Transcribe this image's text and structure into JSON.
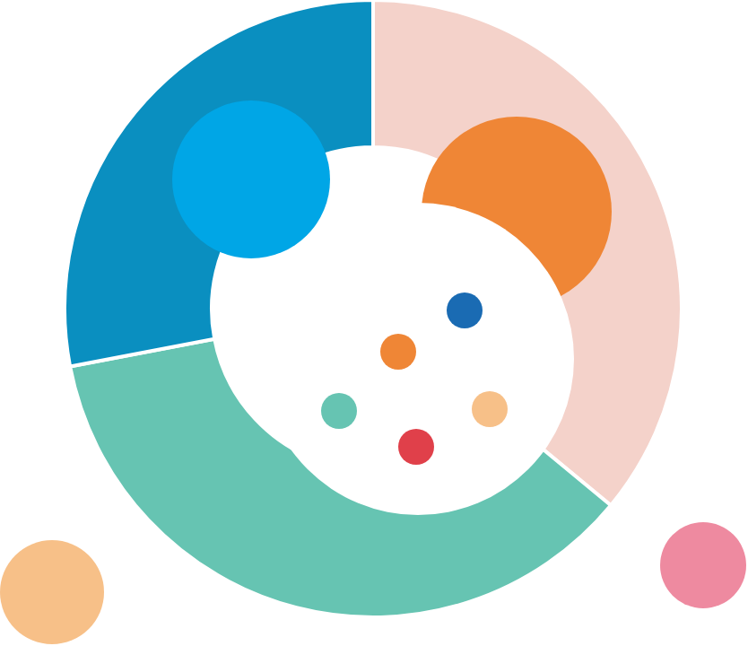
{
  "chart_data": {
    "type": "donut",
    "categories": [
      null,
      null,
      null
    ],
    "values": [
      36,
      36,
      28
    ],
    "colors": [
      "#f4d2ca",
      "#66c4b2",
      "#0a8fc0"
    ]
  }
}
